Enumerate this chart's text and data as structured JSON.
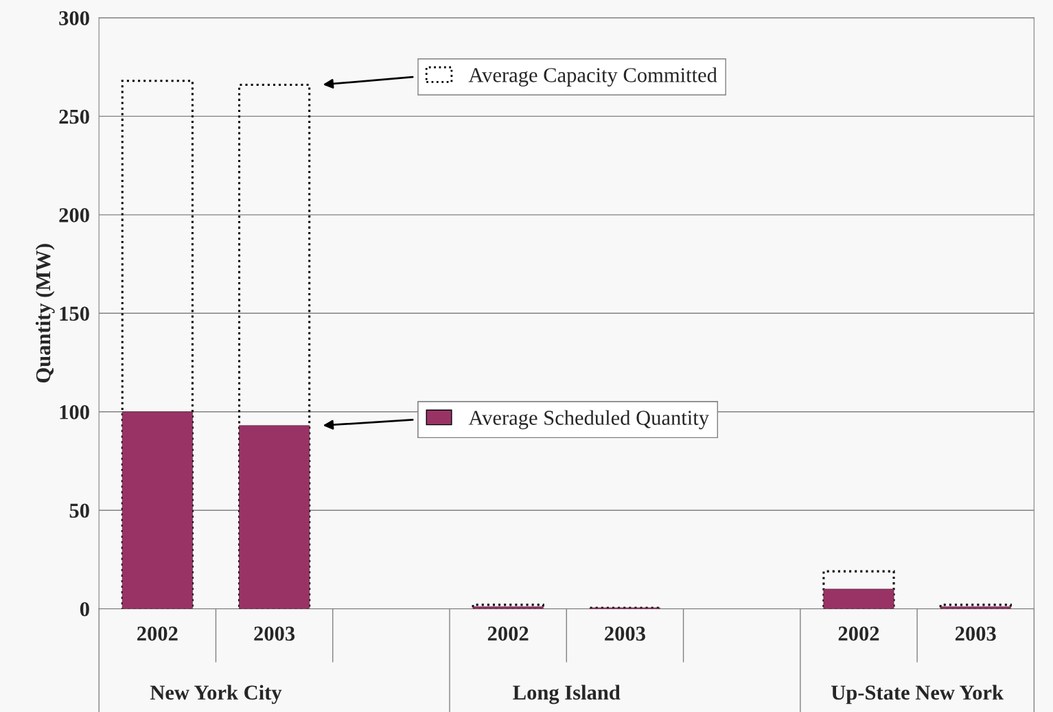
{
  "chart_data": {
    "type": "bar",
    "ylabel": "Quantity (MW)",
    "categories": [
      "2002",
      "2003",
      null,
      "2002",
      "2003",
      null,
      "2002",
      "2003"
    ],
    "series": [
      {
        "name": "Average Capacity Committed",
        "color": "#000000",
        "line_style": "dotted",
        "values": [
          268,
          266,
          null,
          2,
          0.5,
          null,
          19,
          2
        ]
      },
      {
        "name": "Average Scheduled Quantity",
        "color": "#993366",
        "values": [
          100,
          93,
          null,
          1,
          0.5,
          null,
          10,
          1
        ]
      }
    ],
    "annotations": [
      "New York City",
      "Long Island",
      "Up-State New York"
    ],
    "ylim": [
      0,
      300
    ],
    "yticks": [
      0,
      50,
      100,
      150,
      200,
      250,
      300
    ],
    "grid": "y",
    "legend": "top"
  }
}
